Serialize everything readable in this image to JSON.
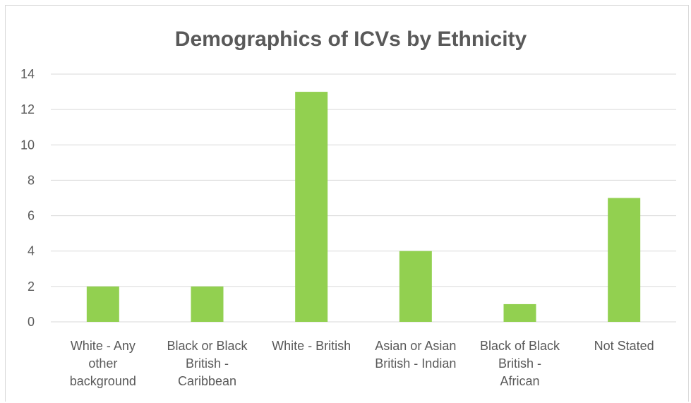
{
  "chart_data": {
    "type": "bar",
    "title": "Demographics of ICVs by Ethnicity",
    "xlabel": "",
    "ylabel": "",
    "categories": [
      "White - Any other background",
      "Black or Black British - Caribbean",
      "White - British",
      "Asian or Asian British - Indian",
      "Black of Black British - African",
      "Not Stated"
    ],
    "category_label_lines": [
      [
        "White - Any",
        "other",
        "background"
      ],
      [
        "Black or Black",
        "British -",
        "Caribbean"
      ],
      [
        "White - British"
      ],
      [
        "Asian or Asian",
        "British - Indian"
      ],
      [
        "Black of Black",
        "British -",
        "African"
      ],
      [
        "Not Stated"
      ]
    ],
    "values": [
      2,
      2,
      13,
      4,
      1,
      7
    ],
    "ylim": [
      0,
      14
    ],
    "yticks": [
      0,
      2,
      4,
      6,
      8,
      10,
      12,
      14
    ],
    "grid": true,
    "legend": "none",
    "bar_color": "#92d050",
    "gridline_color": "#d9d9d9",
    "text_color": "#595959"
  }
}
